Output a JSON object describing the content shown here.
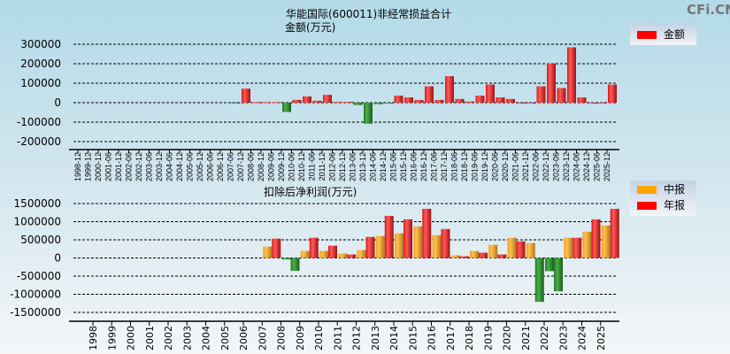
{
  "watermark": "CFi.CN",
  "colors": {
    "positive": "#ff2020",
    "negative": "#2e8b2e",
    "interim": "#ffa820",
    "annual": "#ff2020"
  },
  "chart_data": [
    {
      "type": "bar",
      "title": "华能国际(600011)非经常损益合计",
      "subtitle": "金额(万元)",
      "legend": [
        "金额"
      ],
      "legend_placement": "top-right",
      "ylim": [
        -200000,
        300000
      ],
      "yticks": [
        "300000",
        "200000",
        "100000",
        "0",
        "-100000",
        "-200000"
      ],
      "ytick_values": [
        300000,
        200000,
        100000,
        0,
        -100000,
        -200000
      ],
      "grid": true,
      "categories": [
        "1998-12",
        "1999-12",
        "2000-12",
        "2001-06",
        "2001-12",
        "2002-06",
        "2002-12",
        "2003-06",
        "2003-12",
        "2004-06",
        "2004-12",
        "2005-06",
        "2005-12",
        "2006-06",
        "2006-12",
        "2007-06",
        "2007-12",
        "2008-06",
        "2008-12",
        "2009-06",
        "2009-12",
        "2010-06",
        "2010-12",
        "2011-06",
        "2011-12",
        "2012-06",
        "2012-12",
        "2013-06",
        "2013-12",
        "2014-06",
        "2014-12",
        "2015-06",
        "2015-12",
        "2016-06",
        "2016-12",
        "2017-06",
        "2017-12",
        "2018-06",
        "2018-12",
        "2019-06",
        "2019-12",
        "2020-06",
        "2020-12",
        "2021-06",
        "2021-12",
        "2022-06",
        "2022-12",
        "2023-06",
        "2023-12",
        "2024-06",
        "2024-12",
        "2025-06",
        "2025-12"
      ],
      "values": [
        null,
        null,
        null,
        null,
        null,
        null,
        null,
        null,
        null,
        null,
        null,
        null,
        null,
        null,
        null,
        -2000,
        72000,
        3000,
        3000,
        3000,
        -48000,
        14000,
        32000,
        10000,
        40000,
        4000,
        4000,
        -12000,
        -108000,
        -8000,
        -3000,
        36000,
        27000,
        14000,
        84000,
        14000,
        136000,
        19000,
        6000,
        36000,
        93000,
        27000,
        19000,
        0,
        0,
        84000,
        201000,
        75000,
        284000,
        27000,
        0,
        0,
        93000
      ]
    },
    {
      "type": "bar",
      "title": "扣除后净利润(万元)",
      "legend": [
        "中报",
        "年报"
      ],
      "legend_placement": "top-right",
      "ylim": [
        -1500000,
        1500000
      ],
      "yticks": [
        "1500000",
        "1000000",
        "500000",
        "0",
        "-500000",
        "-1000000",
        "-1500000"
      ],
      "ytick_values": [
        1500000,
        1000000,
        500000,
        0,
        -500000,
        -1000000,
        -1500000
      ],
      "grid": true,
      "categories": [
        "1998",
        "1999",
        "2000",
        "2001",
        "2002",
        "2003",
        "2004",
        "2005",
        "2006",
        "2007",
        "2008",
        "2009",
        "2010",
        "2011",
        "2012",
        "2013",
        "2014",
        "2015",
        "2016",
        "2017",
        "2018",
        "2019",
        "2020",
        "2021",
        "2022",
        "2023",
        "2024",
        "2025"
      ],
      "series": [
        {
          "name": "中报",
          "values": [
            null,
            null,
            null,
            null,
            null,
            null,
            null,
            null,
            null,
            315000,
            -40000,
            194000,
            194000,
            121000,
            218000,
            605000,
            677000,
            871000,
            629000,
            73000,
            194000,
            363000,
            556000,
            411000,
            -363000,
            556000,
            726000,
            895000
          ]
        },
        {
          "name": "年报",
          "values": [
            null,
            null,
            null,
            null,
            null,
            null,
            null,
            null,
            null,
            532000,
            -355000,
            556000,
            339000,
            97000,
            581000,
            1161000,
            1065000,
            1355000,
            798000,
            48000,
            145000,
            97000,
            460000,
            -1210000,
            -919000,
            556000,
            1065000,
            1355000
          ]
        }
      ]
    }
  ]
}
